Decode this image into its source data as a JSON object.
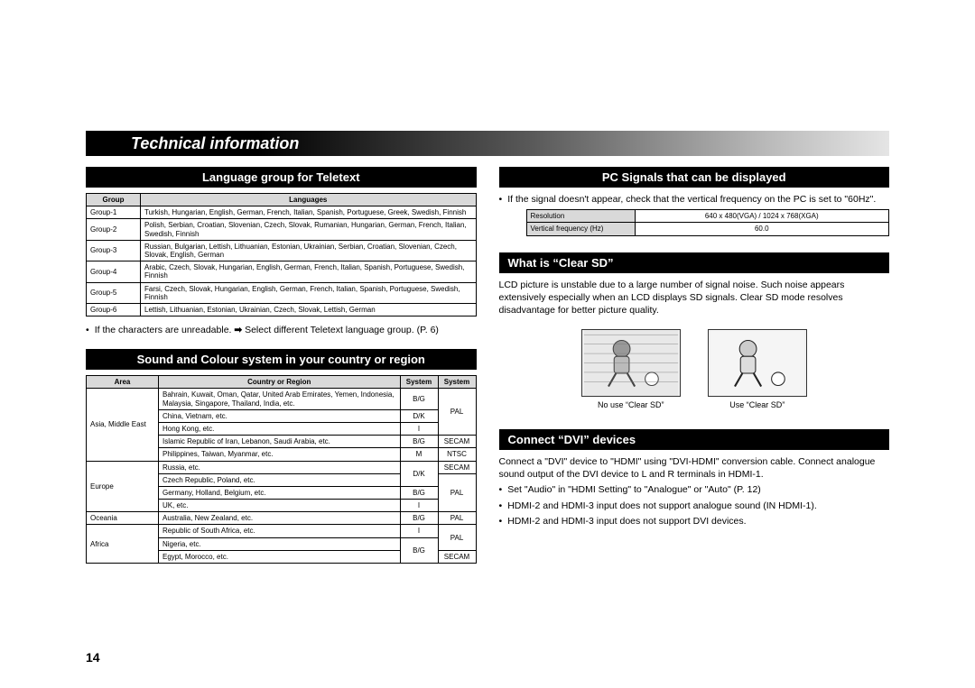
{
  "header": {
    "title": "Technical information"
  },
  "page_number": "14",
  "left": {
    "section1": {
      "heading": "Language group for Teletext",
      "table": {
        "headers": [
          "Group",
          "Languages"
        ],
        "rows": [
          [
            "Group-1",
            "Turkish, Hungarian, English, German, French, Italian, Spanish, Portuguese, Greek, Swedish, Finnish"
          ],
          [
            "Group-2",
            "Polish, Serbian, Croatian, Slovenian, Czech, Slovak, Rumanian, Hungarian, German, French, Italian, Swedish, Finnish"
          ],
          [
            "Group-3",
            "Russian, Bulgarian, Lettish, Lithuanian, Estonian, Ukrainian, Serbian, Croatian, Slovenian, Czech, Slovak, English, German"
          ],
          [
            "Group-4",
            "Arabic, Czech, Slovak, Hungarian, English, German, French, Italian, Spanish, Portuguese, Swedish, Finnish"
          ],
          [
            "Group-5",
            "Farsi, Czech, Slovak, Hungarian, English, German, French, Italian, Spanish, Portuguese, Swedish, Finnish"
          ],
          [
            "Group-6",
            "Lettish, Lithuanian, Estonian, Ukrainian, Czech, Slovak, Lettish, German"
          ]
        ]
      },
      "note_prefix": "If the characters are unreadable.",
      "note_suffix": "Select different Teletext language group. (P. 6)"
    },
    "section2": {
      "heading": "Sound and Colour system in your country or region",
      "table": {
        "headers": [
          "Area",
          "Country or Region",
          "System",
          "System"
        ],
        "rows": [
          {
            "area": "Asia, Middle East",
            "rowspan": 5,
            "cells": [
              [
                "Bahrain, Kuwait, Oman, Qatar, United Arab Emirates, Yemen, Indonesia, Malaysia, Singapore, Thailand, India, etc.",
                "B/G",
                {
                  "text": "PAL",
                  "rowspan": 3
                }
              ],
              [
                "China, Vietnam, etc.",
                "D/K",
                null
              ],
              [
                "Hong Kong, etc.",
                "I",
                null
              ],
              [
                "Islamic Republic of Iran, Lebanon, Saudi Arabia, etc.",
                "B/G",
                "SECAM"
              ],
              [
                "Philippines, Taiwan, Myanmar, etc.",
                "M",
                "NTSC"
              ]
            ]
          },
          {
            "area": "Europe",
            "rowspan": 4,
            "cells": [
              [
                "Russia, etc.",
                {
                  "text": "D/K",
                  "rowspan": 2
                },
                "SECAM"
              ],
              [
                "Czech Republic, Poland, etc.",
                null,
                {
                  "text": "PAL",
                  "rowspan": 3
                }
              ],
              [
                "Germany, Holland, Belgium, etc.",
                "B/G",
                null
              ],
              [
                "UK, etc.",
                "I",
                null
              ]
            ]
          },
          {
            "area": "Oceania",
            "rowspan": 1,
            "cells": [
              [
                "Australia, New Zealand, etc.",
                "B/G",
                "PAL"
              ]
            ]
          },
          {
            "area": "Africa",
            "rowspan": 3,
            "cells": [
              [
                "Republic of South Africa, etc.",
                "I",
                {
                  "text": "PAL",
                  "rowspan": 2
                }
              ],
              [
                "Nigeria, etc.",
                {
                  "text": "B/G",
                  "rowspan": 2
                },
                null
              ],
              [
                "Egypt, Morocco, etc.",
                null,
                "SECAM"
              ]
            ]
          }
        ]
      }
    }
  },
  "right": {
    "section1": {
      "heading": "PC Signals that can be displayed",
      "bullet": "If the signal doesn't appear, check that the vertical frequency on the PC is set to \"60Hz\".",
      "table": {
        "rows": [
          [
            "Resolution",
            "640 x 480(VGA) / 1024 x 768(XGA)"
          ],
          [
            "Vertical frequency (Hz)",
            "60.0"
          ]
        ]
      }
    },
    "section2": {
      "heading": "What is “Clear SD”",
      "body": "LCD picture is unstable due to a large number of signal noise. Such noise appears extensively especially when an LCD displays SD signals. Clear SD mode resolves disadvantage for better picture quality.",
      "thumb_caps": [
        "No use “Clear SD”",
        "Use “Clear SD”"
      ]
    },
    "section3": {
      "heading": "Connect “DVI” devices",
      "body": "Connect a \"DVI\" device to \"HDMI\" using \"DVI-HDMI\" conversion cable. Connect analogue sound output of the DVI device to L and R terminals in HDMI-1.",
      "bullets": [
        "Set \"Audio\" in \"HDMI Setting\" to \"Analogue\" or \"Auto\" (P. 12)",
        "HDMI-2 and HDMI-3 input does not support analogue sound (IN HDMI-1).",
        "HDMI-2 and HDMI-3 input does not support DVI devices."
      ]
    }
  }
}
